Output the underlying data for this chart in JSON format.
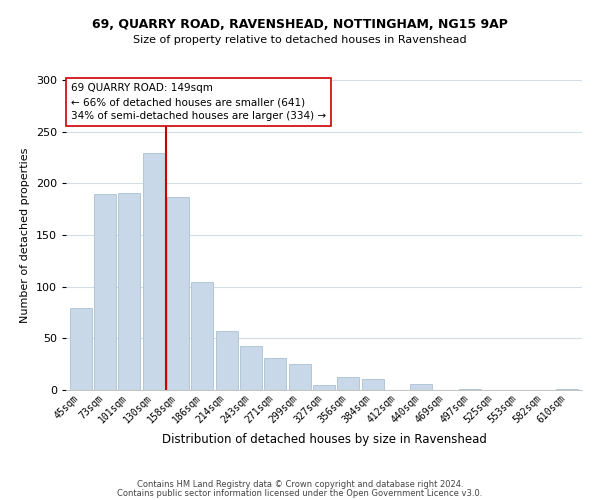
{
  "title1": "69, QUARRY ROAD, RAVENSHEAD, NOTTINGHAM, NG15 9AP",
  "title2": "Size of property relative to detached houses in Ravenshead",
  "xlabel": "Distribution of detached houses by size in Ravenshead",
  "ylabel": "Number of detached properties",
  "categories": [
    "45sqm",
    "73sqm",
    "101sqm",
    "130sqm",
    "158sqm",
    "186sqm",
    "214sqm",
    "243sqm",
    "271sqm",
    "299sqm",
    "327sqm",
    "356sqm",
    "384sqm",
    "412sqm",
    "440sqm",
    "469sqm",
    "497sqm",
    "525sqm",
    "553sqm",
    "582sqm",
    "610sqm"
  ],
  "values": [
    79,
    190,
    191,
    229,
    187,
    105,
    57,
    43,
    31,
    25,
    5,
    13,
    11,
    0,
    6,
    0,
    1,
    0,
    0,
    0,
    1
  ],
  "bar_color": "#c8d8e8",
  "bar_edge_color": "#a0b8cc",
  "ref_line_idx": 4,
  "reference_line_color": "#cc0000",
  "annotation_line1": "69 QUARRY ROAD: 149sqm",
  "annotation_line2": "← 66% of detached houses are smaller (641)",
  "annotation_line3": "34% of semi-detached houses are larger (334) →",
  "annotation_box_edge": "#cc0000",
  "footer1": "Contains HM Land Registry data © Crown copyright and database right 2024.",
  "footer2": "Contains public sector information licensed under the Open Government Licence v3.0.",
  "ylim": [
    0,
    300
  ],
  "yticks": [
    0,
    50,
    100,
    150,
    200,
    250,
    300
  ],
  "bg_color": "#ffffff",
  "grid_color": "#d4dde6"
}
